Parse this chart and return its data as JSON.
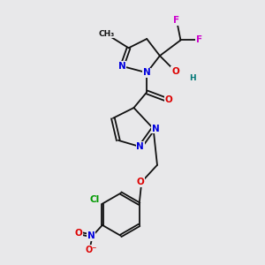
{
  "bg_color": "#e8e8ea",
  "bond_color": "#111111",
  "bond_width": 1.3,
  "atom_colors": {
    "N": "#0000dd",
    "O": "#dd0000",
    "F": "#cc00cc",
    "Cl": "#009900",
    "H": "#007777",
    "C": "#111111"
  },
  "font_size": 7.5
}
